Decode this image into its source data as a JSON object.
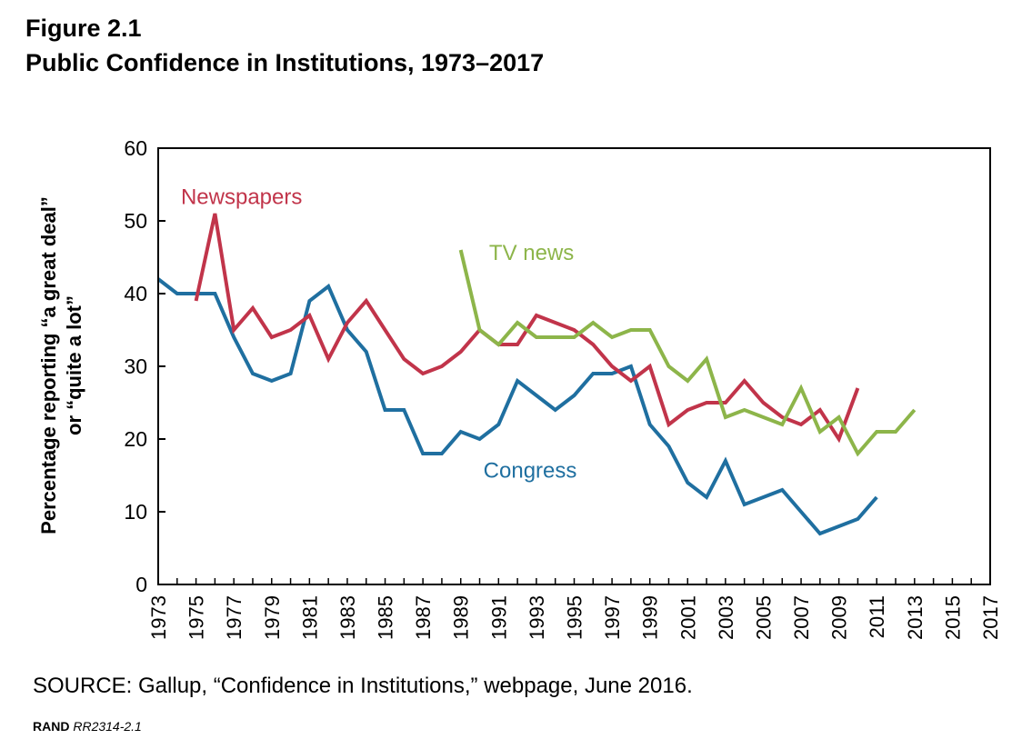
{
  "figure": {
    "label": "Figure 2.1",
    "title": "Public Confidence in Institutions, 1973–2017"
  },
  "source": "SOURCE: Gallup, “Confidence in Institutions,” webpage, June 2016.",
  "credit": {
    "org": "RAND",
    "code": "RR2314-2.1"
  },
  "colors": {
    "congress": "#1f6fa0",
    "newspapers": "#c1344a",
    "tv_news": "#8db54a",
    "axis": "#000000"
  },
  "chart_data": {
    "type": "line",
    "title": "Public Confidence in Institutions, 1973–2017",
    "xlabel": "",
    "ylabel_lines": [
      "Percentage reporting “a great deal”",
      "or “quite a lot”"
    ],
    "xlim": [
      1973,
      2017
    ],
    "ylim": [
      0,
      60
    ],
    "yticks": [
      0,
      10,
      20,
      30,
      40,
      50,
      60
    ],
    "xticks": [
      1973,
      1975,
      1977,
      1979,
      1981,
      1983,
      1985,
      1987,
      1989,
      1991,
      1993,
      1995,
      1997,
      1999,
      2001,
      2003,
      2005,
      2007,
      2009,
      2011,
      2013,
      2015,
      2017
    ],
    "grid": false,
    "legend": "inline labels",
    "series": [
      {
        "name": "Congress",
        "color": "#1f6fa0",
        "points": [
          [
            1973,
            42
          ],
          [
            1974,
            40
          ],
          [
            1975,
            40
          ],
          [
            1976,
            40
          ],
          [
            1977,
            34
          ],
          [
            1978,
            29
          ],
          [
            1979,
            28
          ],
          [
            1980,
            29
          ],
          [
            1981,
            39
          ],
          [
            1982,
            41
          ],
          [
            1983,
            35
          ],
          [
            1984,
            32
          ],
          [
            1985,
            24
          ],
          [
            1986,
            24
          ],
          [
            1987,
            18
          ],
          [
            1988,
            18
          ],
          [
            1989,
            21
          ],
          [
            1990,
            20
          ],
          [
            1991,
            22
          ],
          [
            1992,
            28
          ],
          [
            1993,
            26
          ],
          [
            1994,
            24
          ],
          [
            1995,
            26
          ],
          [
            1996,
            29
          ],
          [
            1997,
            29
          ],
          [
            1998,
            30
          ],
          [
            1999,
            22
          ],
          [
            2000,
            19
          ],
          [
            2001,
            14
          ],
          [
            2002,
            12
          ],
          [
            2003,
            17
          ],
          [
            2004,
            11
          ],
          [
            2005,
            12
          ],
          [
            2006,
            13
          ],
          [
            2007,
            10
          ],
          [
            2008,
            7
          ],
          [
            2009,
            8
          ],
          [
            2010,
            9
          ],
          [
            2011,
            12
          ]
        ]
      },
      {
        "name": "Newspapers",
        "color": "#c1344a",
        "points": [
          [
            1975,
            39
          ],
          [
            1976,
            51
          ],
          [
            1977,
            35
          ],
          [
            1978,
            38
          ],
          [
            1979,
            34
          ],
          [
            1980,
            35
          ],
          [
            1981,
            37
          ],
          [
            1982,
            31
          ],
          [
            1983,
            36
          ],
          [
            1984,
            39
          ],
          [
            1985,
            35
          ],
          [
            1986,
            31
          ],
          [
            1987,
            29
          ],
          [
            1988,
            30
          ],
          [
            1989,
            32
          ],
          [
            1990,
            35
          ],
          [
            1991,
            33
          ],
          [
            1992,
            33
          ],
          [
            1993,
            37
          ],
          [
            1994,
            36
          ],
          [
            1995,
            35
          ],
          [
            1996,
            33
          ],
          [
            1997,
            30
          ],
          [
            1998,
            28
          ],
          [
            1999,
            30
          ],
          [
            2000,
            22
          ],
          [
            2001,
            24
          ],
          [
            2002,
            25
          ],
          [
            2003,
            25
          ],
          [
            2004,
            28
          ],
          [
            2005,
            25
          ],
          [
            2006,
            23
          ],
          [
            2007,
            22
          ],
          [
            2008,
            24
          ],
          [
            2009,
            20
          ],
          [
            2010,
            27
          ]
        ]
      },
      {
        "name": "TV news",
        "color": "#8db54a",
        "points": [
          [
            1989,
            46
          ],
          [
            1990,
            35
          ],
          [
            1991,
            33
          ],
          [
            1992,
            36
          ],
          [
            1993,
            34
          ],
          [
            1994,
            34
          ],
          [
            1995,
            34
          ],
          [
            1996,
            36
          ],
          [
            1997,
            34
          ],
          [
            1998,
            35
          ],
          [
            1999,
            35
          ],
          [
            2000,
            30
          ],
          [
            2001,
            28
          ],
          [
            2002,
            31
          ],
          [
            2003,
            23
          ],
          [
            2004,
            24
          ],
          [
            2005,
            23
          ],
          [
            2006,
            22
          ],
          [
            2007,
            27
          ],
          [
            2008,
            21
          ],
          [
            2009,
            23
          ],
          [
            2010,
            18
          ],
          [
            2011,
            21
          ],
          [
            2012,
            21
          ],
          [
            2013,
            24
          ]
        ]
      }
    ]
  }
}
